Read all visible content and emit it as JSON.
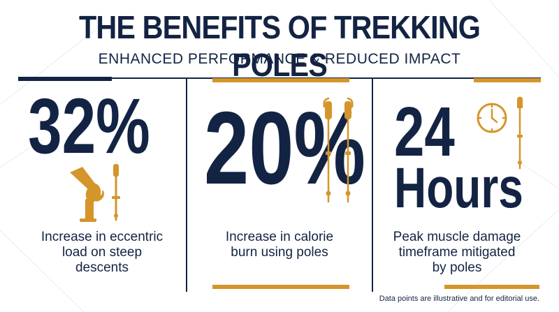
{
  "header": {
    "title": "THE BENEFITS OF TREKKING POLES",
    "subtitle": "ENHANCED PERFORMANCE & REDUCED IMPACT"
  },
  "stats": [
    {
      "value": "32%",
      "description_lines": [
        "Increase in eccentric",
        "load on steep",
        "descents"
      ],
      "icon": "knee-joint-and-pole-icon"
    },
    {
      "value": "20%",
      "description_lines": [
        "Increase in calorie",
        "burn using poles"
      ],
      "icon": "trekking-poles-pair-icon"
    },
    {
      "value_line1": "24",
      "value_line2": "Hours",
      "description_lines": [
        "Peak muscle damage",
        "timeframe mitigated",
        "by poles"
      ],
      "icon": "clock-and-pole-icon"
    }
  ],
  "footnote": "Data points are illustrative and for editorial use.",
  "colors": {
    "navy": "#132343",
    "gold": "#D4952B",
    "background": "#FFFFFF"
  }
}
